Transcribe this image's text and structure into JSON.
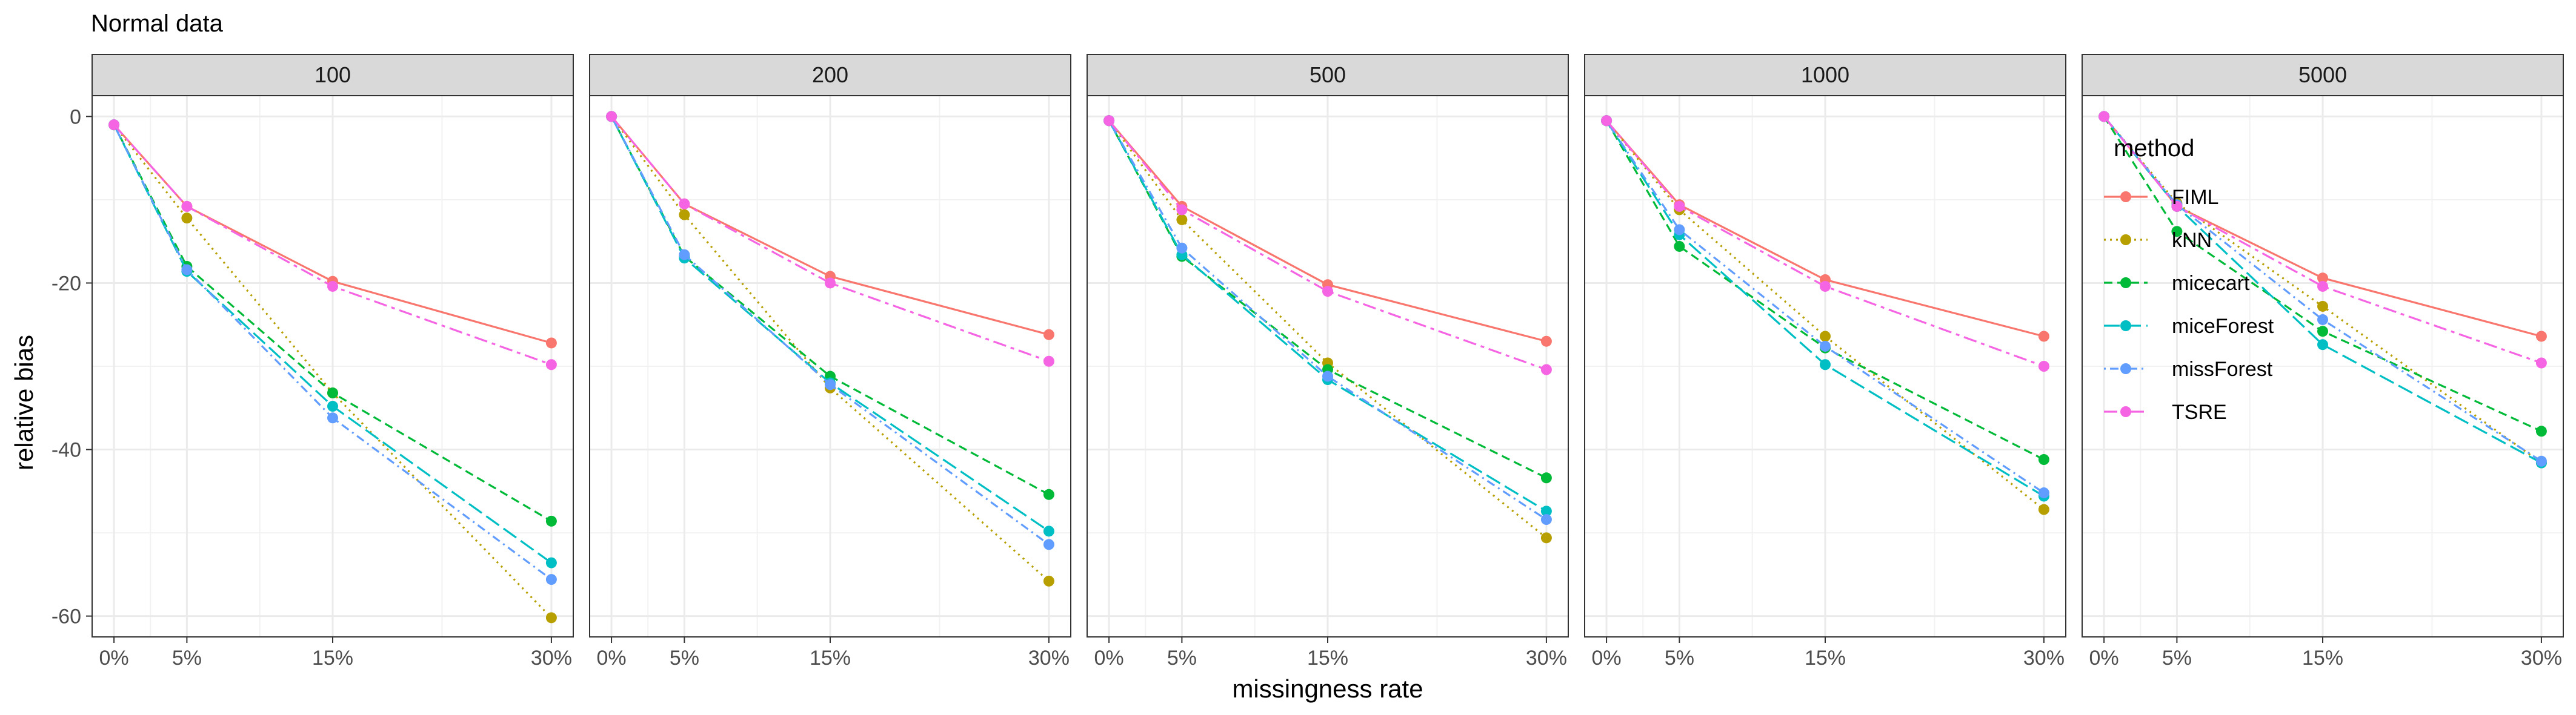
{
  "chart_data": {
    "type": "line",
    "title": "Normal data",
    "xlabel": "missingness rate",
    "ylabel": "relative bias",
    "x": [
      0,
      5,
      15,
      30
    ],
    "x_tick_labels": [
      "0%",
      "5%",
      "15%",
      "30%"
    ],
    "xlim": [
      -1.5,
      31.5
    ],
    "ylim": [
      -62.5,
      2.5
    ],
    "y_ticks": [
      0,
      -20,
      -40,
      -60
    ],
    "grid": true,
    "facets": [
      "100",
      "200",
      "500",
      "1000",
      "5000"
    ],
    "legend": {
      "title": "method",
      "position": "inside-right",
      "items": [
        "FIML",
        "kNN",
        "micecart",
        "miceForest",
        "missForest",
        "TSRE"
      ]
    },
    "series_styles": {
      "FIML": {
        "color": "#F8766D",
        "dash": "solid"
      },
      "kNN": {
        "color": "#B79F00",
        "dash": "dotted"
      },
      "micecart": {
        "color": "#00BA38",
        "dash": "dashed"
      },
      "miceForest": {
        "color": "#00BFC4",
        "dash": "longdash"
      },
      "missForest": {
        "color": "#619CFF",
        "dash": "dotdash"
      },
      "TSRE": {
        "color": "#F564E3",
        "dash": "twodash"
      }
    },
    "panels": [
      {
        "facet": "100",
        "series": [
          {
            "name": "FIML",
            "values": [
              -1,
              -10.8,
              -19.8,
              -27.2
            ]
          },
          {
            "name": "kNN",
            "values": [
              -1,
              -12.2,
              -33.2,
              -60.2
            ]
          },
          {
            "name": "micecart",
            "values": [
              -1,
              -18,
              -33.2,
              -48.6
            ]
          },
          {
            "name": "miceForest",
            "values": [
              -1,
              -18.6,
              -34.8,
              -53.6
            ]
          },
          {
            "name": "missForest",
            "values": [
              -1,
              -18.4,
              -36.2,
              -55.6
            ]
          },
          {
            "name": "TSRE",
            "values": [
              -1,
              -10.8,
              -20.4,
              -29.8
            ]
          }
        ]
      },
      {
        "facet": "200",
        "series": [
          {
            "name": "FIML",
            "values": [
              0,
              -10.5,
              -19.2,
              -26.2
            ]
          },
          {
            "name": "kNN",
            "values": [
              0,
              -11.8,
              -32.6,
              -55.8
            ]
          },
          {
            "name": "micecart",
            "values": [
              0,
              -16.8,
              -31.2,
              -45.4
            ]
          },
          {
            "name": "miceForest",
            "values": [
              0,
              -17,
              -32,
              -49.8
            ]
          },
          {
            "name": "missForest",
            "values": [
              0,
              -16.6,
              -32.2,
              -51.4
            ]
          },
          {
            "name": "TSRE",
            "values": [
              0,
              -10.5,
              -20,
              -29.4
            ]
          }
        ]
      },
      {
        "facet": "500",
        "series": [
          {
            "name": "FIML",
            "values": [
              -0.5,
              -10.8,
              -20.2,
              -27
            ]
          },
          {
            "name": "kNN",
            "values": [
              -0.5,
              -12.4,
              -29.6,
              -50.6
            ]
          },
          {
            "name": "micecart",
            "values": [
              -0.5,
              -16.8,
              -30.4,
              -43.4
            ]
          },
          {
            "name": "miceForest",
            "values": [
              -0.5,
              -16.6,
              -31.6,
              -47.4
            ]
          },
          {
            "name": "missForest",
            "values": [
              -0.5,
              -15.8,
              -31.2,
              -48.4
            ]
          },
          {
            "name": "TSRE",
            "values": [
              -0.5,
              -11.2,
              -21,
              -30.4
            ]
          }
        ]
      },
      {
        "facet": "1000",
        "series": [
          {
            "name": "FIML",
            "values": [
              -0.5,
              -10.6,
              -19.6,
              -26.4
            ]
          },
          {
            "name": "kNN",
            "values": [
              -0.5,
              -11.2,
              -26.4,
              -47.2
            ]
          },
          {
            "name": "micecart",
            "values": [
              -0.5,
              -15.6,
              -27.8,
              -41.2
            ]
          },
          {
            "name": "miceForest",
            "values": [
              -0.5,
              -14.2,
              -29.8,
              -45.6
            ]
          },
          {
            "name": "missForest",
            "values": [
              -0.5,
              -13.6,
              -27.6,
              -45.2
            ]
          },
          {
            "name": "TSRE",
            "values": [
              -0.5,
              -10.8,
              -20.4,
              -30
            ]
          }
        ]
      },
      {
        "facet": "5000",
        "series": [
          {
            "name": "FIML",
            "values": [
              0,
              -10.8,
              -19.4,
              -26.4
            ]
          },
          {
            "name": "kNN",
            "values": [
              0,
              -10.4,
              -22.8,
              -41.6
            ]
          },
          {
            "name": "micecart",
            "values": [
              0,
              -13.8,
              -25.8,
              -37.8
            ]
          },
          {
            "name": "miceForest",
            "values": [
              0,
              -10.8,
              -27.4,
              -41.6
            ]
          },
          {
            "name": "missForest",
            "values": [
              0,
              -10.6,
              -24.4,
              -41.4
            ]
          },
          {
            "name": "TSRE",
            "values": [
              0,
              -10.8,
              -20.4,
              -29.6
            ]
          }
        ]
      }
    ]
  }
}
